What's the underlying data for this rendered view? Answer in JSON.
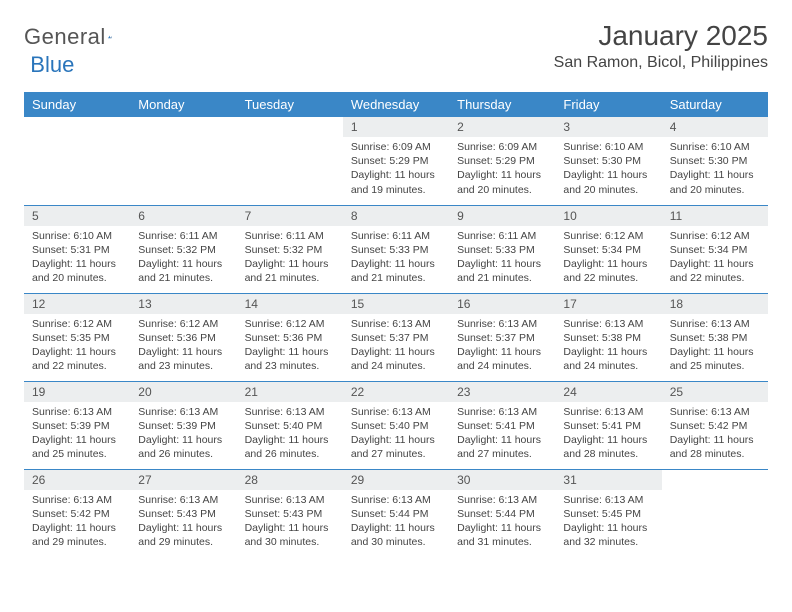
{
  "logo": {
    "text1": "General",
    "text2": "Blue"
  },
  "title": "January 2025",
  "location": "San Ramon, Bicol, Philippines",
  "colors": {
    "header_bg": "#3a87c7",
    "header_fg": "#ffffff",
    "daynum_bg": "#eceeef",
    "rule": "#3a87c7",
    "text": "#444444",
    "logo_accent": "#2a75bb"
  },
  "weekdays": [
    "Sunday",
    "Monday",
    "Tuesday",
    "Wednesday",
    "Thursday",
    "Friday",
    "Saturday"
  ],
  "weeks": [
    [
      {
        "empty": true
      },
      {
        "empty": true
      },
      {
        "empty": true
      },
      {
        "day": "1",
        "sunrise": "Sunrise: 6:09 AM",
        "sunset": "Sunset: 5:29 PM",
        "day1": "Daylight: 11 hours",
        "day2": "and 19 minutes."
      },
      {
        "day": "2",
        "sunrise": "Sunrise: 6:09 AM",
        "sunset": "Sunset: 5:29 PM",
        "day1": "Daylight: 11 hours",
        "day2": "and 20 minutes."
      },
      {
        "day": "3",
        "sunrise": "Sunrise: 6:10 AM",
        "sunset": "Sunset: 5:30 PM",
        "day1": "Daylight: 11 hours",
        "day2": "and 20 minutes."
      },
      {
        "day": "4",
        "sunrise": "Sunrise: 6:10 AM",
        "sunset": "Sunset: 5:30 PM",
        "day1": "Daylight: 11 hours",
        "day2": "and 20 minutes."
      }
    ],
    [
      {
        "day": "5",
        "sunrise": "Sunrise: 6:10 AM",
        "sunset": "Sunset: 5:31 PM",
        "day1": "Daylight: 11 hours",
        "day2": "and 20 minutes."
      },
      {
        "day": "6",
        "sunrise": "Sunrise: 6:11 AM",
        "sunset": "Sunset: 5:32 PM",
        "day1": "Daylight: 11 hours",
        "day2": "and 21 minutes."
      },
      {
        "day": "7",
        "sunrise": "Sunrise: 6:11 AM",
        "sunset": "Sunset: 5:32 PM",
        "day1": "Daylight: 11 hours",
        "day2": "and 21 minutes."
      },
      {
        "day": "8",
        "sunrise": "Sunrise: 6:11 AM",
        "sunset": "Sunset: 5:33 PM",
        "day1": "Daylight: 11 hours",
        "day2": "and 21 minutes."
      },
      {
        "day": "9",
        "sunrise": "Sunrise: 6:11 AM",
        "sunset": "Sunset: 5:33 PM",
        "day1": "Daylight: 11 hours",
        "day2": "and 21 minutes."
      },
      {
        "day": "10",
        "sunrise": "Sunrise: 6:12 AM",
        "sunset": "Sunset: 5:34 PM",
        "day1": "Daylight: 11 hours",
        "day2": "and 22 minutes."
      },
      {
        "day": "11",
        "sunrise": "Sunrise: 6:12 AM",
        "sunset": "Sunset: 5:34 PM",
        "day1": "Daylight: 11 hours",
        "day2": "and 22 minutes."
      }
    ],
    [
      {
        "day": "12",
        "sunrise": "Sunrise: 6:12 AM",
        "sunset": "Sunset: 5:35 PM",
        "day1": "Daylight: 11 hours",
        "day2": "and 22 minutes."
      },
      {
        "day": "13",
        "sunrise": "Sunrise: 6:12 AM",
        "sunset": "Sunset: 5:36 PM",
        "day1": "Daylight: 11 hours",
        "day2": "and 23 minutes."
      },
      {
        "day": "14",
        "sunrise": "Sunrise: 6:12 AM",
        "sunset": "Sunset: 5:36 PM",
        "day1": "Daylight: 11 hours",
        "day2": "and 23 minutes."
      },
      {
        "day": "15",
        "sunrise": "Sunrise: 6:13 AM",
        "sunset": "Sunset: 5:37 PM",
        "day1": "Daylight: 11 hours",
        "day2": "and 24 minutes."
      },
      {
        "day": "16",
        "sunrise": "Sunrise: 6:13 AM",
        "sunset": "Sunset: 5:37 PM",
        "day1": "Daylight: 11 hours",
        "day2": "and 24 minutes."
      },
      {
        "day": "17",
        "sunrise": "Sunrise: 6:13 AM",
        "sunset": "Sunset: 5:38 PM",
        "day1": "Daylight: 11 hours",
        "day2": "and 24 minutes."
      },
      {
        "day": "18",
        "sunrise": "Sunrise: 6:13 AM",
        "sunset": "Sunset: 5:38 PM",
        "day1": "Daylight: 11 hours",
        "day2": "and 25 minutes."
      }
    ],
    [
      {
        "day": "19",
        "sunrise": "Sunrise: 6:13 AM",
        "sunset": "Sunset: 5:39 PM",
        "day1": "Daylight: 11 hours",
        "day2": "and 25 minutes."
      },
      {
        "day": "20",
        "sunrise": "Sunrise: 6:13 AM",
        "sunset": "Sunset: 5:39 PM",
        "day1": "Daylight: 11 hours",
        "day2": "and 26 minutes."
      },
      {
        "day": "21",
        "sunrise": "Sunrise: 6:13 AM",
        "sunset": "Sunset: 5:40 PM",
        "day1": "Daylight: 11 hours",
        "day2": "and 26 minutes."
      },
      {
        "day": "22",
        "sunrise": "Sunrise: 6:13 AM",
        "sunset": "Sunset: 5:40 PM",
        "day1": "Daylight: 11 hours",
        "day2": "and 27 minutes."
      },
      {
        "day": "23",
        "sunrise": "Sunrise: 6:13 AM",
        "sunset": "Sunset: 5:41 PM",
        "day1": "Daylight: 11 hours",
        "day2": "and 27 minutes."
      },
      {
        "day": "24",
        "sunrise": "Sunrise: 6:13 AM",
        "sunset": "Sunset: 5:41 PM",
        "day1": "Daylight: 11 hours",
        "day2": "and 28 minutes."
      },
      {
        "day": "25",
        "sunrise": "Sunrise: 6:13 AM",
        "sunset": "Sunset: 5:42 PM",
        "day1": "Daylight: 11 hours",
        "day2": "and 28 minutes."
      }
    ],
    [
      {
        "day": "26",
        "sunrise": "Sunrise: 6:13 AM",
        "sunset": "Sunset: 5:42 PM",
        "day1": "Daylight: 11 hours",
        "day2": "and 29 minutes."
      },
      {
        "day": "27",
        "sunrise": "Sunrise: 6:13 AM",
        "sunset": "Sunset: 5:43 PM",
        "day1": "Daylight: 11 hours",
        "day2": "and 29 minutes."
      },
      {
        "day": "28",
        "sunrise": "Sunrise: 6:13 AM",
        "sunset": "Sunset: 5:43 PM",
        "day1": "Daylight: 11 hours",
        "day2": "and 30 minutes."
      },
      {
        "day": "29",
        "sunrise": "Sunrise: 6:13 AM",
        "sunset": "Sunset: 5:44 PM",
        "day1": "Daylight: 11 hours",
        "day2": "and 30 minutes."
      },
      {
        "day": "30",
        "sunrise": "Sunrise: 6:13 AM",
        "sunset": "Sunset: 5:44 PM",
        "day1": "Daylight: 11 hours",
        "day2": "and 31 minutes."
      },
      {
        "day": "31",
        "sunrise": "Sunrise: 6:13 AM",
        "sunset": "Sunset: 5:45 PM",
        "day1": "Daylight: 11 hours",
        "day2": "and 32 minutes."
      },
      {
        "empty": true
      }
    ]
  ]
}
